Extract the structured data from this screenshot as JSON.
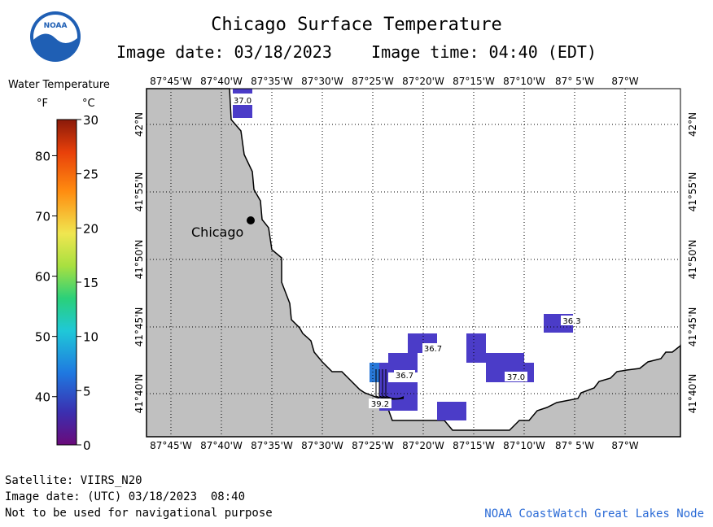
{
  "header": {
    "title": "Chicago Surface Temperature",
    "subtitle": "Image date: 03/18/2023    Image time: 04:40 (EDT)",
    "logo_text": "NOAA"
  },
  "legend": {
    "title": "Water Temperature",
    "unit_f": "°F",
    "unit_c": "°C",
    "f_ticks": [
      "80",
      "70",
      "60",
      "50",
      "40"
    ],
    "c_ticks": [
      "30",
      "25",
      "20",
      "15",
      "10",
      "5",
      "0"
    ],
    "f_values": [
      80,
      70,
      60,
      50,
      40
    ],
    "c_values": [
      30,
      25,
      20,
      15,
      10,
      5,
      0
    ]
  },
  "map": {
    "lon_labels": [
      "87°45'W",
      "87°40'W",
      "87°35'W",
      "87°30'W",
      "87°25'W",
      "87°20'W",
      "87°15'W",
      "87°10'W",
      "87° 5'W",
      "87°W"
    ],
    "lat_labels": [
      "42°N",
      "41°55'N",
      "41°50'N",
      "41°45'N",
      "41°40'N"
    ],
    "city_label": "Chicago",
    "sst_labels": [
      "37.0",
      "36.7",
      "36.7",
      "39.2",
      "37.0",
      "36.3"
    ],
    "colors": {
      "land": "#c0c0c0",
      "water": "#ffffff",
      "sst_purple": "#4b3cc8",
      "sst_blue": "#2878d8",
      "grid": "#000000"
    }
  },
  "footer": {
    "satellite": "Satellite: VIIRS_N20",
    "utc_date": "Image date: (UTC) 03/18/2023  08:40",
    "disclaimer": "Not to be used for navigational purpose",
    "credit": "NOAA CoastWatch Great Lakes Node"
  }
}
